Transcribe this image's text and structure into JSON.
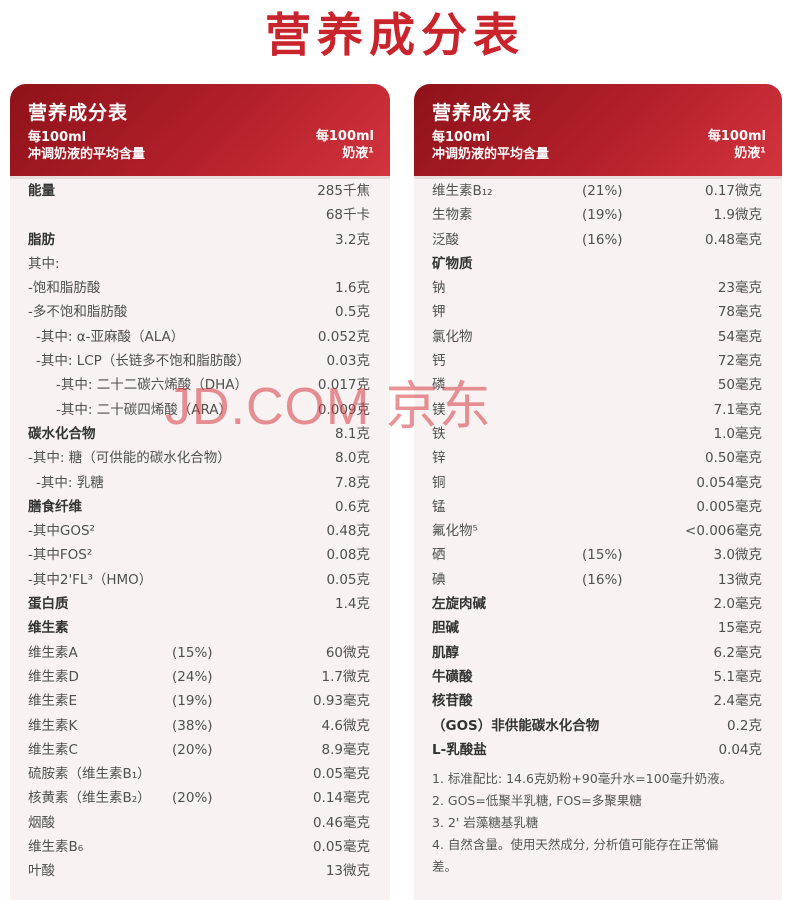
{
  "main_title": "营养成分表",
  "watermark": "JD.COM 京东",
  "left": {
    "title": "营养成分表",
    "sub1": "每100ml",
    "sub2": "冲调奶液的平均含量",
    "right1": "每100ml",
    "right2": "奶液¹",
    "rows": [
      {
        "n": "能量",
        "p": "",
        "v": "285千焦",
        "b": true,
        "ind": 0
      },
      {
        "n": "",
        "p": "",
        "v": "68千卡",
        "b": false,
        "ind": 0
      },
      {
        "n": "脂肪",
        "p": "",
        "v": "3.2克",
        "b": true,
        "ind": 0
      },
      {
        "n": "其中:",
        "p": "",
        "v": "",
        "b": false,
        "ind": 0
      },
      {
        "n": "-饱和脂肪酸",
        "p": "",
        "v": "1.6克",
        "b": false,
        "ind": 0
      },
      {
        "n": "-多不饱和脂肪酸",
        "p": "",
        "v": "0.5克",
        "b": false,
        "ind": 0
      },
      {
        "n": "-其中: α-亚麻酸（ALA）",
        "p": "",
        "v": "0.052克",
        "b": false,
        "ind": 1
      },
      {
        "n": "-其中: LCP（长链多不饱和脂肪酸）",
        "p": "",
        "v": "0.03克",
        "b": false,
        "ind": 1
      },
      {
        "n": "-其中: 二十二碳六烯酸（DHA）",
        "p": "",
        "v": "0.017克",
        "b": false,
        "ind": 3
      },
      {
        "n": "-其中: 二十碳四烯酸（ARA）",
        "p": "",
        "v": "0.009克",
        "b": false,
        "ind": 3
      },
      {
        "n": "碳水化合物",
        "p": "",
        "v": "8.1克",
        "b": true,
        "ind": 0
      },
      {
        "n": "-其中: 糖（可供能的碳水化合物）",
        "p": "",
        "v": "8.0克",
        "b": false,
        "ind": 0
      },
      {
        "n": "-其中: 乳糖",
        "p": "",
        "v": "7.8克",
        "b": false,
        "ind": 1
      },
      {
        "n": "膳食纤维",
        "p": "",
        "v": "0.6克",
        "b": true,
        "ind": 0
      },
      {
        "n": "-其中GOS²",
        "p": "",
        "v": "0.48克",
        "b": false,
        "ind": 0
      },
      {
        "n": "-其中FOS²",
        "p": "",
        "v": "0.08克",
        "b": false,
        "ind": 0
      },
      {
        "n": "-其中2'FL³（HMO）",
        "p": "",
        "v": "0.05克",
        "b": false,
        "ind": 0
      },
      {
        "n": "蛋白质",
        "p": "",
        "v": "1.4克",
        "b": true,
        "ind": 0
      },
      {
        "n": "维生素",
        "p": "",
        "v": "",
        "b": true,
        "ind": 0
      },
      {
        "n": "维生素A",
        "p": "(15%)",
        "v": "60微克",
        "b": false,
        "ind": 0
      },
      {
        "n": "维生素D",
        "p": "(24%)",
        "v": "1.7微克",
        "b": false,
        "ind": 0
      },
      {
        "n": "维生素E",
        "p": "(19%)",
        "v": "0.93毫克",
        "b": false,
        "ind": 0
      },
      {
        "n": "维生素K",
        "p": "(38%)",
        "v": "4.6微克",
        "b": false,
        "ind": 0
      },
      {
        "n": "维生素C",
        "p": "(20%)",
        "v": "8.9毫克",
        "b": false,
        "ind": 0
      },
      {
        "n": "硫胺素（维生素B₁）",
        "p": "",
        "v": "0.05毫克",
        "b": false,
        "ind": 0
      },
      {
        "n": "核黄素（维生素B₂）",
        "p": "(20%)",
        "v": "0.14毫克",
        "b": false,
        "ind": 0
      },
      {
        "n": "烟酸",
        "p": "",
        "v": "0.46毫克",
        "b": false,
        "ind": 0
      },
      {
        "n": "维生素B₆",
        "p": "",
        "v": "0.05毫克",
        "b": false,
        "ind": 0
      },
      {
        "n": "叶酸",
        "p": "",
        "v": "13微克",
        "b": false,
        "ind": 0
      }
    ]
  },
  "right": {
    "title": "营养成分表",
    "sub1": "每100ml",
    "sub2": "冲调奶液的平均含量",
    "right1": "每100ml",
    "right2": "奶液¹",
    "rows": [
      {
        "n": "维生素B₁₂",
        "p": "(21%)",
        "v": "0.17微克",
        "b": false
      },
      {
        "n": "生物素",
        "p": "(19%)",
        "v": "1.9微克",
        "b": false
      },
      {
        "n": "泛酸",
        "p": "(16%)",
        "v": "0.48毫克",
        "b": false
      },
      {
        "n": "矿物质",
        "p": "",
        "v": "",
        "b": true
      },
      {
        "n": "钠",
        "p": "",
        "v": "23毫克",
        "b": false
      },
      {
        "n": "钾",
        "p": "",
        "v": "78毫克",
        "b": false
      },
      {
        "n": "氯化物",
        "p": "",
        "v": "54毫克",
        "b": false
      },
      {
        "n": "钙",
        "p": "",
        "v": "72毫克",
        "b": false
      },
      {
        "n": "磷",
        "p": "",
        "v": "50毫克",
        "b": false
      },
      {
        "n": "镁",
        "p": "",
        "v": "7.1毫克",
        "b": false
      },
      {
        "n": "铁",
        "p": "",
        "v": "1.0毫克",
        "b": false
      },
      {
        "n": "锌",
        "p": "",
        "v": "0.50毫克",
        "b": false
      },
      {
        "n": "铜",
        "p": "",
        "v": "0.054毫克",
        "b": false
      },
      {
        "n": "锰",
        "p": "",
        "v": "0.005毫克",
        "b": false
      },
      {
        "n": "氟化物⁵",
        "p": "",
        "v": "<0.006毫克",
        "b": false
      },
      {
        "n": "硒",
        "p": "(15%)",
        "v": "3.0微克",
        "b": false
      },
      {
        "n": "碘",
        "p": "(16%)",
        "v": "13微克",
        "b": false
      },
      {
        "n": "左旋肉碱",
        "p": "",
        "v": "2.0毫克",
        "b": true
      },
      {
        "n": "胆碱",
        "p": "",
        "v": "15毫克",
        "b": true
      },
      {
        "n": "肌醇",
        "p": "",
        "v": "6.2毫克",
        "b": true
      },
      {
        "n": "牛磺酸",
        "p": "",
        "v": "5.1毫克",
        "b": true
      },
      {
        "n": "核苷酸",
        "p": "",
        "v": "2.4毫克",
        "b": true
      },
      {
        "n": "（GOS）非供能碳水化合物",
        "p": "",
        "v": "0.2克",
        "b": true
      },
      {
        "n": "L-乳酸盐",
        "p": "",
        "v": "0.04克",
        "b": true
      }
    ],
    "notes": [
      "1. 标准配比: 14.6克奶粉+90毫升水=100毫升奶液。",
      "2. GOS=低聚半乳糖, FOS=多聚果糖",
      "3. 2' 岩藻糖基乳糖",
      "4. 自然含量。使用天然成分, 分析值可能存在正常偏",
      "差。"
    ]
  }
}
